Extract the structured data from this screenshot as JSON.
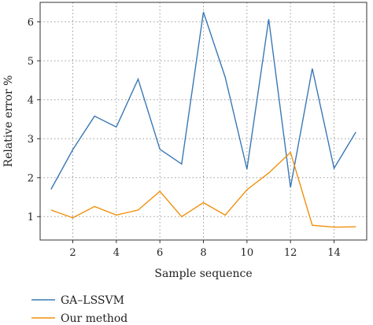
{
  "chart_data": {
    "type": "line",
    "xlabel": "Sample sequence",
    "ylabel": "Relative error %",
    "xlim": [
      0.5,
      15.5
    ],
    "ylim": [
      0.4,
      6.5
    ],
    "xticks": [
      2,
      4,
      6,
      8,
      10,
      12,
      14
    ],
    "yticks": [
      1,
      2,
      3,
      4,
      5,
      6
    ],
    "grid": true,
    "legend_position": "bottom-left, below plot",
    "x": [
      1,
      2,
      3,
      4,
      5,
      6,
      7,
      8,
      9,
      10,
      11,
      12,
      13,
      14,
      15
    ],
    "series": [
      {
        "name": "GA–LSSVM",
        "color": "#3a78b5",
        "values": [
          1.7,
          2.72,
          3.58,
          3.3,
          4.53,
          2.73,
          2.35,
          6.25,
          4.58,
          2.22,
          6.07,
          1.75,
          4.8,
          2.24,
          3.17
        ]
      },
      {
        "name": "Our method",
        "color": "#f0900c",
        "values": [
          1.17,
          0.97,
          1.26,
          1.04,
          1.17,
          1.65,
          1.0,
          1.36,
          1.04,
          1.69,
          2.12,
          2.65,
          0.78,
          0.73,
          0.74
        ]
      }
    ]
  }
}
